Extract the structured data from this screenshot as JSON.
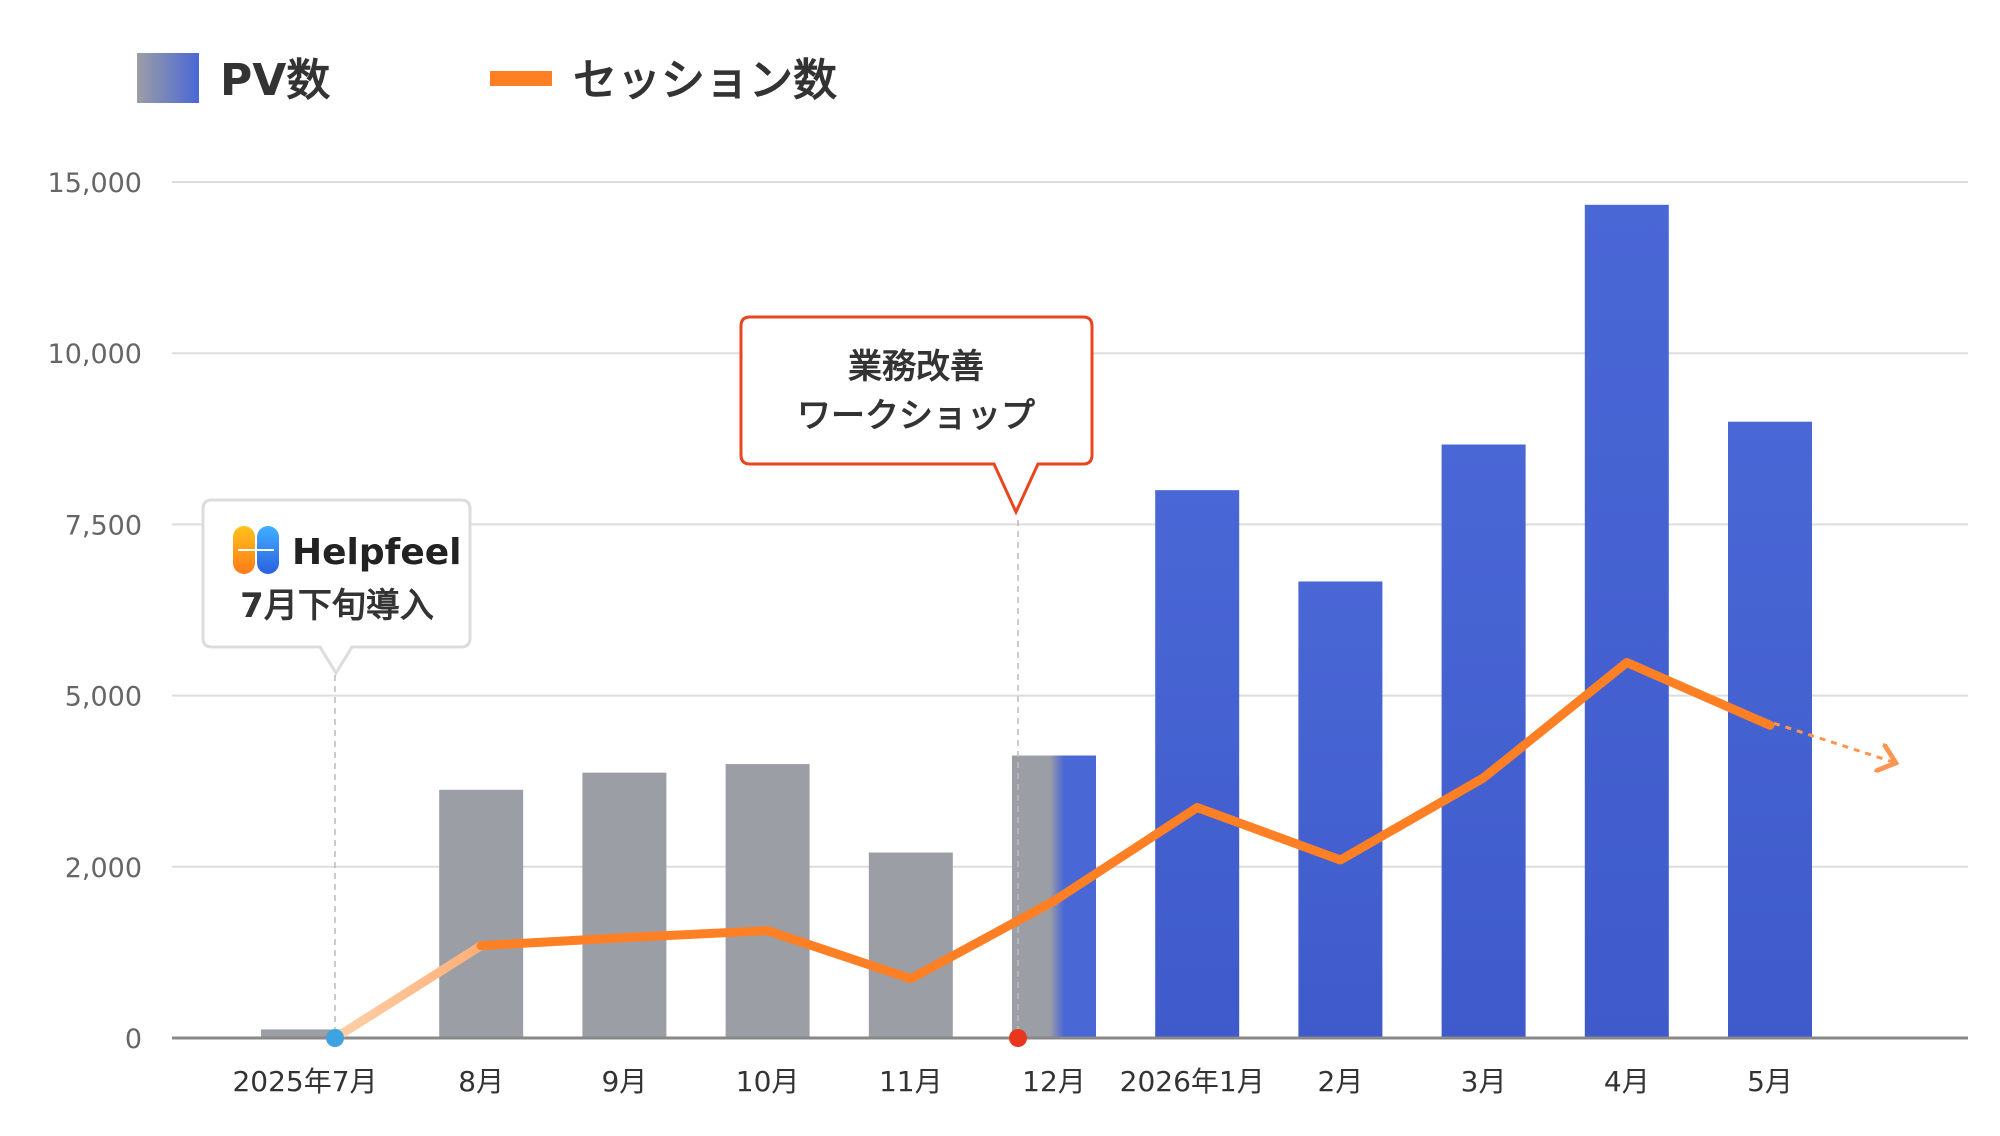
{
  "legend": {
    "pv_label": "PV数",
    "session_label": "セッション数"
  },
  "colors": {
    "pv_before": "#9c9ea5",
    "pv_after": "#4a67d6",
    "session_line": "#ff8024",
    "grid": "#dddddd",
    "axis": "#888888",
    "callout_helpfeel_border": "#dddddd",
    "callout_workshop_border": "#e8461e",
    "marker_intro": "#3fa3e0",
    "marker_workshop": "#e8371e"
  },
  "callouts": {
    "helpfeel": {
      "brand": "Helpfeel",
      "text": "7月下旬導入"
    },
    "workshop": {
      "line1": "業務改善",
      "line2": "ワークショップ"
    }
  },
  "chart_data": {
    "type": "bar",
    "categories": [
      "2025年7月",
      "8月",
      "9月",
      "10月",
      "11月",
      "12月",
      "2026年1月",
      "2月",
      "3月",
      "4月",
      "5月"
    ],
    "y_ticks": [
      "0",
      "2,000",
      "5,000",
      "7,500",
      "10,000",
      "15,000"
    ],
    "series": [
      {
        "type": "bar",
        "values": [
          150,
          4350,
          4650,
          4800,
          3250,
          4950,
          9600,
          8000,
          10400,
          14600,
          10800
        ]
      },
      {
        "type": "line",
        "values": [
          0,
          1620,
          1760,
          1880,
          1040,
          2400,
          4040,
          3120,
          4560,
          6580,
          5480
        ]
      }
    ]
  }
}
